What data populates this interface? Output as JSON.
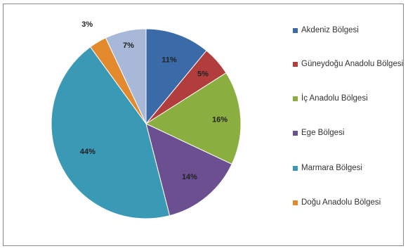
{
  "chart_data": {
    "type": "pie",
    "categories": [
      "Akdeniz Bölgesi",
      "Güneydoğu Anadolu Bölgesi",
      "İç Anadolu Bölgesi",
      "Ege Bölgesi",
      "Marmara Bölgesi",
      "Doğu Anadolu Bölgesi",
      ""
    ],
    "values": [
      11,
      5,
      16,
      14,
      44,
      3,
      7
    ],
    "labels": [
      "11%",
      "5%",
      "16%",
      "14%",
      "44%",
      "3%",
      "7%"
    ],
    "colors": [
      "#3a6aa8",
      "#b23d3d",
      "#8aae3f",
      "#6b4f90",
      "#3a9ab5",
      "#e38a2e",
      "#a7b8d8"
    ],
    "legend": {
      "position": "right",
      "items": [
        {
          "label": "Akdeniz Bölgesi",
          "color": "#3a6aa8"
        },
        {
          "label": "Güneydoğu Anadolu Bölgesi",
          "color": "#b23d3d"
        },
        {
          "label": "İç Anadolu Bölgesi",
          "color": "#8aae3f"
        },
        {
          "label": "Ege Bölgesi",
          "color": "#6b4f90"
        },
        {
          "label": "Marmara Bölgesi",
          "color": "#3a9ab5"
        },
        {
          "label": "Doğu Anadolu Bölgesi",
          "color": "#e38a2e"
        }
      ]
    }
  }
}
